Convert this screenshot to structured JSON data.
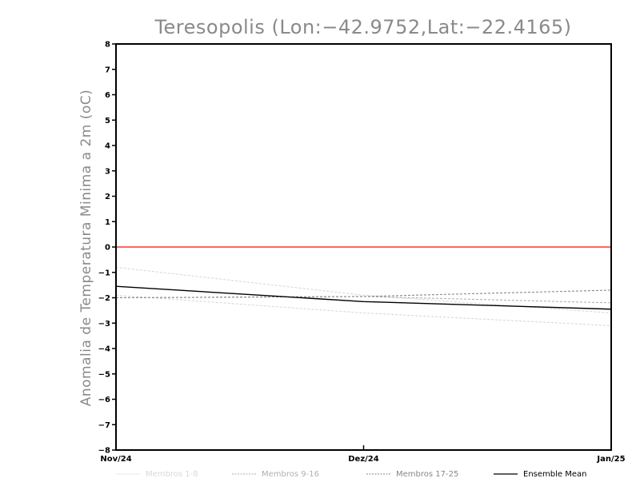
{
  "chart_data": {
    "type": "line",
    "title": "Teresopolis (Lon:−42.9752,Lat:−22.4165)",
    "ylabel": "Anomalia de Temperatura Minima a 2m (oC)",
    "xlabel": "",
    "categories": [
      "Nov/24",
      "Dez/24",
      "Jan/25"
    ],
    "ylim": [
      -8,
      8
    ],
    "yticks": [
      "8",
      "7",
      "6",
      "5",
      "4",
      "3",
      "2",
      "1",
      "0",
      "−1",
      "−2",
      "−3",
      "−4",
      "−5",
      "−6",
      "−7",
      "−8"
    ],
    "grid": false,
    "legend_position": "bottom",
    "reference_line": {
      "value": 0,
      "color": "#ff3030"
    },
    "series": [
      {
        "name": "Membros 1-8",
        "color": "#d8d8d8",
        "style": "dashed",
        "values": [
          -0.8,
          -1.9,
          -2.6
        ]
      },
      {
        "name": "",
        "color": "#d8d8d8",
        "style": "dashed",
        "values": [
          -1.9,
          -2.6,
          -3.1
        ]
      },
      {
        "name": "Membros 9-16",
        "color": "#b0b0b0",
        "style": "dashed",
        "values": [
          -2.0,
          -1.95,
          -2.2
        ]
      },
      {
        "name": "Membros 17-25",
        "color": "#888888",
        "style": "dashed",
        "values": [
          -2.0,
          -1.95,
          -1.7
        ]
      },
      {
        "name": "Ensemble Mean",
        "color": "#000000",
        "style": "solid",
        "values": [
          -1.55,
          -2.15,
          -2.45
        ]
      }
    ],
    "legend": [
      {
        "label": "Membros 1-8",
        "color": "#d8d8d8",
        "style": "dashed"
      },
      {
        "label": "Membros 9-16",
        "color": "#b0b0b0",
        "style": "dashed"
      },
      {
        "label": "Membros 17-25",
        "color": "#888888",
        "style": "dashed"
      },
      {
        "label": "Ensemble Mean",
        "color": "#000000",
        "style": "solid"
      }
    ]
  }
}
